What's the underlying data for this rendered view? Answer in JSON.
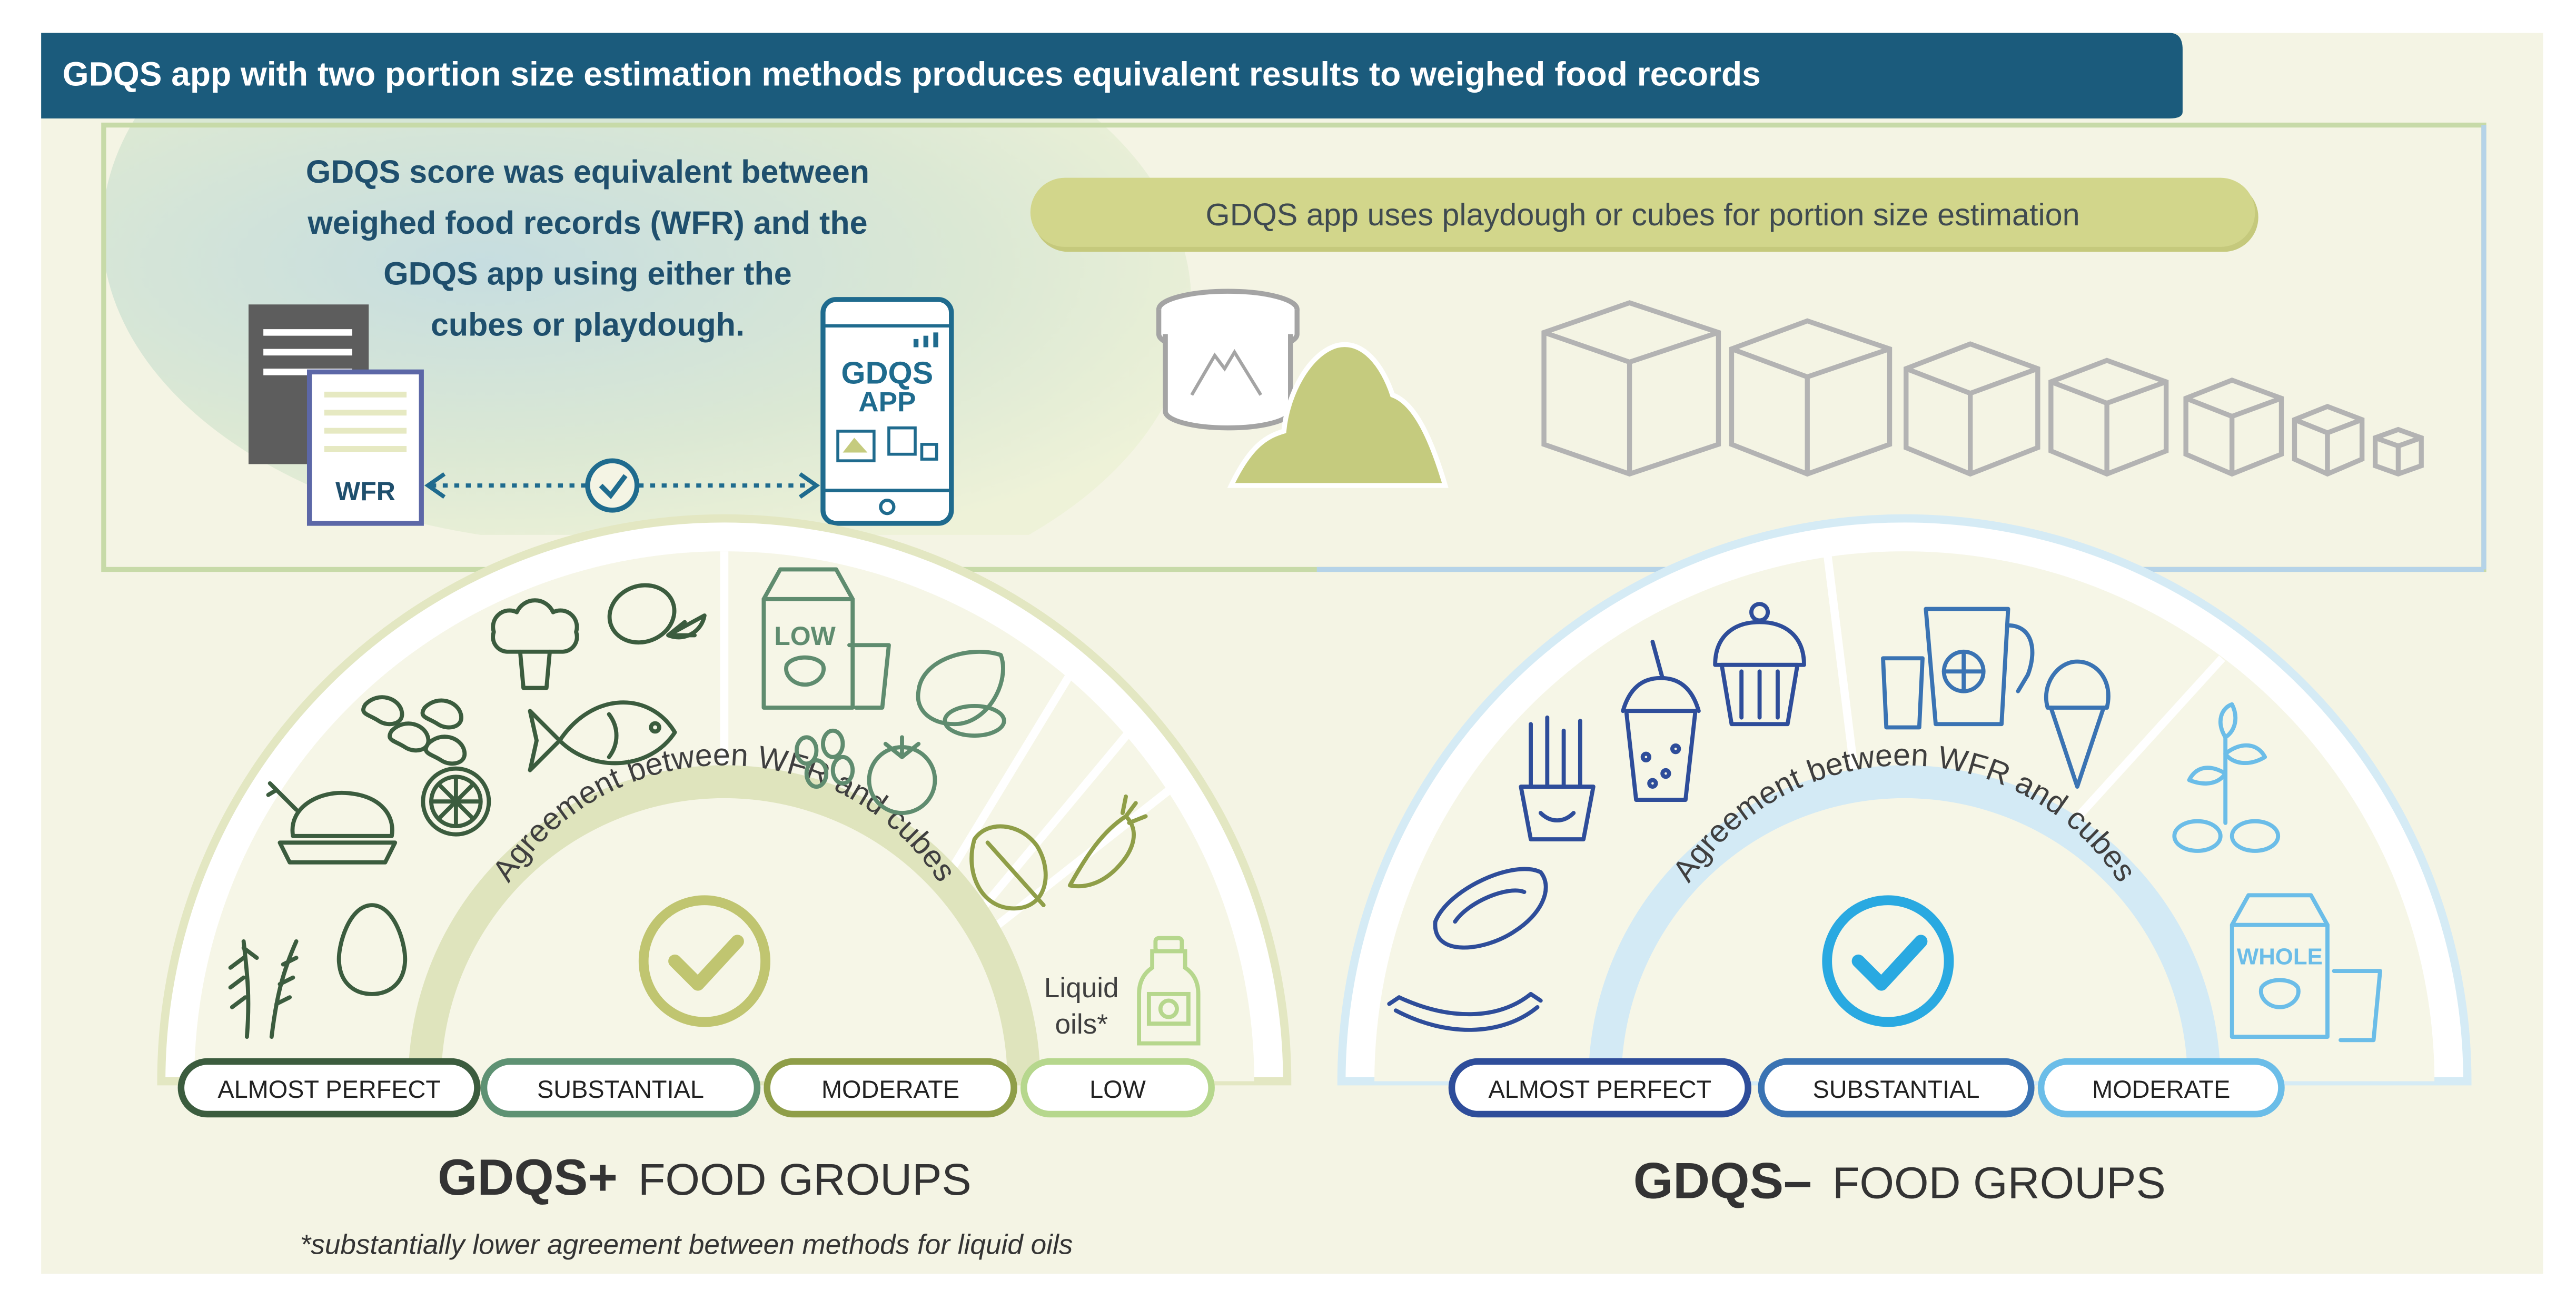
{
  "banner": {
    "title": "GDQS app with two portion size estimation methods produces equivalent results to weighed food records"
  },
  "summary": {
    "lines": [
      "GDQS score was equivalent between",
      "weighed food records (WFR) and the",
      "GDQS app using either the",
      "cubes or playdough."
    ],
    "wfr_label": "WFR",
    "app_label_1": "GDQS",
    "app_label_2": "APP"
  },
  "method_pill": {
    "text": "GDQS app uses playdough or cubes for portion size estimation"
  },
  "plus_panel": {
    "arc_text": "Agreement between WFR and cubes",
    "liquid_line1": "Liquid",
    "liquid_line2": "oils*",
    "milk_label": "LOW",
    "levels": [
      "ALMOST PERFECT",
      "SUBSTANTIAL",
      "MODERATE",
      "LOW"
    ],
    "title_bold": "GDQS+",
    "title_rest": "FOOD GROUPS",
    "footnote": "*substantially lower agreement between methods for liquid oils"
  },
  "minus_panel": {
    "arc_text": "Agreement between WFR and cubes",
    "milk_label": "WHOLE",
    "levels": [
      "ALMOST PERFECT",
      "SUBSTANTIAL",
      "MODERATE"
    ],
    "title_bold": "GDQS–",
    "title_rest": "FOOD GROUPS"
  },
  "colors": {
    "banner": "#1b5b7c",
    "panel_bg": "#f4f4e4",
    "green_arc": "#e3e7c2",
    "olive": "#c5cb7e",
    "blue_arc": "#d5ebf5",
    "check_blue": "#29a9e1",
    "almost_perfect_green": "#3b5c3e",
    "substantial_green": "#5e9273",
    "moderate_green": "#8f9e48",
    "low_green": "#b6d78d",
    "almost_perfect_blue": "#2e4d9a",
    "substantial_blue": "#3a73b3",
    "moderate_blue": "#6bbde8"
  }
}
